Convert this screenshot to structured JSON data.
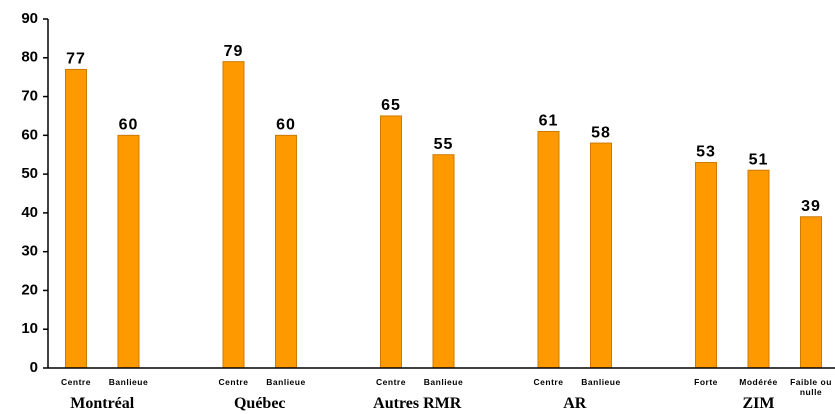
{
  "chart_data": {
    "type": "bar",
    "groups": [
      {
        "label": "Montréal",
        "categories": [
          "Centre",
          "Banlieue"
        ],
        "values": [
          77,
          60
        ]
      },
      {
        "label": "Québec",
        "categories": [
          "Centre",
          "Banlieue"
        ],
        "values": [
          79,
          60
        ]
      },
      {
        "label": "Autres RMR",
        "categories": [
          "Centre",
          "Banlieue"
        ],
        "values": [
          65,
          55
        ]
      },
      {
        "label": "AR",
        "categories": [
          "Centre",
          "Banlieue"
        ],
        "values": [
          61,
          58
        ]
      },
      {
        "label": "ZIM",
        "categories": [
          "Forte",
          "Modérée",
          "Faible ou nulle"
        ],
        "values": [
          53,
          51,
          39
        ]
      }
    ],
    "color": "#ff9900",
    "ylim": [
      0,
      90
    ],
    "yticks": [
      0,
      10,
      20,
      30,
      40,
      50,
      60,
      70,
      80,
      90
    ],
    "grid": false
  }
}
